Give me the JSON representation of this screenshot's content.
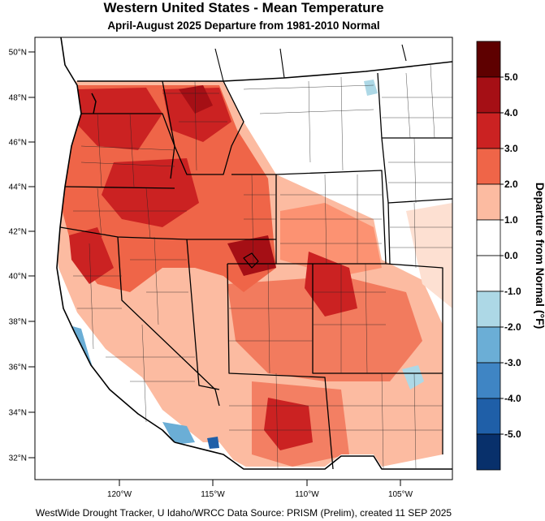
{
  "title": "Western United States - Mean Temperature",
  "subtitle": "April-August 2025  Departure from 1981-2010 Normal",
  "footer": "WestWide Drought Tracker, U Idaho/WRCC Data Source: PRISM (Prelim), created 11 SEP 2025",
  "map": {
    "lat_ticks": [
      "50°N",
      "48°N",
      "46°N",
      "44°N",
      "42°N",
      "40°N",
      "38°N",
      "36°N",
      "34°N",
      "32°N"
    ],
    "lon_ticks": [
      "120°W",
      "115°W",
      "110°W",
      "105°W"
    ]
  },
  "colorbar": {
    "title": "Departure from Normal (°F)",
    "bins": [
      {
        "color": "#5e0000"
      },
      {
        "color": "#a50f15"
      },
      {
        "color": "#cb2222"
      },
      {
        "color": "#ef6548"
      },
      {
        "color": "#fcbba1"
      },
      {
        "color": "#ffffff"
      },
      {
        "color": "#ffffff"
      },
      {
        "color": "#add8e6"
      },
      {
        "color": "#6baed6"
      },
      {
        "color": "#3f85c4"
      },
      {
        "color": "#1f5fa8"
      },
      {
        "color": "#08306b"
      }
    ],
    "labels": [
      "5.0",
      "4.0",
      "3.0",
      "2.0",
      "1.0",
      "0.0",
      "-1.0",
      "-2.0",
      "-3.0",
      "-4.0",
      "-5.0"
    ]
  }
}
